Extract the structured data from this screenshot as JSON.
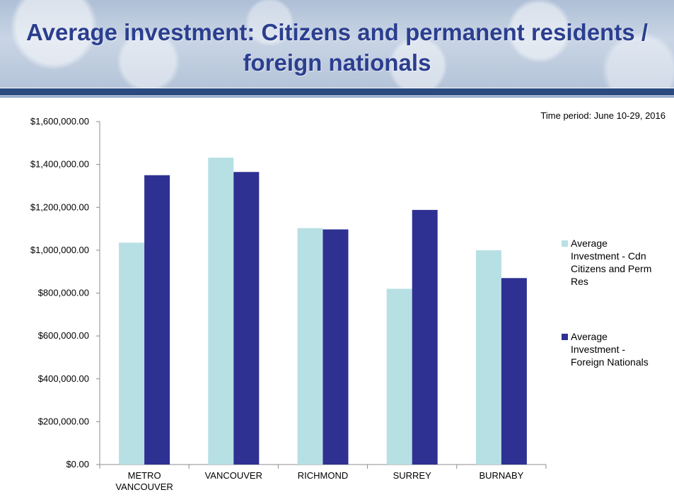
{
  "slide": {
    "title": "Average investment: Citizens and permanent residents / foreign nationals",
    "time_period": "Time period: June 10-29, 2016"
  },
  "colors": {
    "title": "#2b3e8f",
    "band": "#2c4a80",
    "citizens": "#b7e0e4",
    "foreign": "#2e3192"
  },
  "chart_data": {
    "type": "bar",
    "categories": [
      "METRO VANCOUVER",
      "VANCOUVER",
      "RICHMOND",
      "SURREY",
      "BURNABY"
    ],
    "category_lines": [
      [
        "METRO",
        "VANCOUVER"
      ],
      [
        "VANCOUVER"
      ],
      [
        "RICHMOND"
      ],
      [
        "SURREY"
      ],
      [
        "BURNABY"
      ]
    ],
    "series": [
      {
        "name": "Average Investment - Cdn Citizens and Perm Res",
        "legend_lines": [
          "Average",
          "Investment - Cdn",
          "Citizens and Perm",
          "Res"
        ],
        "values": [
          1035000,
          1432000,
          1103000,
          820000,
          1000000
        ]
      },
      {
        "name": "Average Investment - Foreign Nationals",
        "legend_lines": [
          "Average",
          "Investment -",
          "Foreign Nationals"
        ],
        "values": [
          1350000,
          1365000,
          1097000,
          1188000,
          870000
        ]
      }
    ],
    "yticks": [
      "$0.00",
      "$200,000.00",
      "$400,000.00",
      "$600,000.00",
      "$800,000.00",
      "$1,000,000.00",
      "$1,200,000.00",
      "$1,400,000.00",
      "$1,600,000.00"
    ],
    "ylim": [
      0,
      1600000
    ],
    "grid": false,
    "legend_position": "right"
  }
}
